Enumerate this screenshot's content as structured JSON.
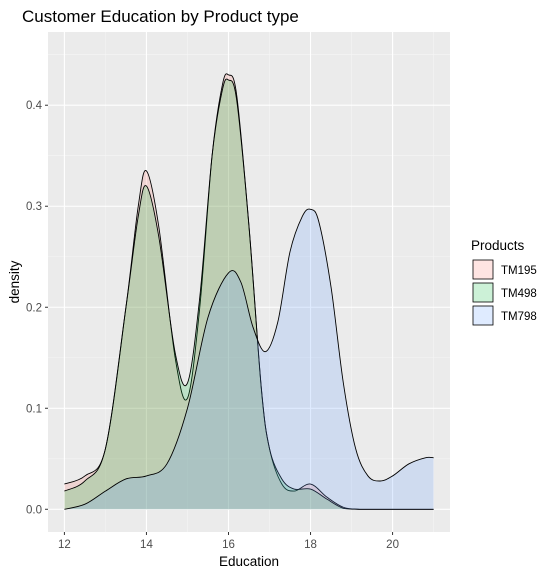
{
  "chart_data": {
    "type": "area",
    "subtype": "density",
    "title": "Customer Education by Product type",
    "xlabel": "Education",
    "ylabel": "density",
    "xlim": [
      11.6,
      21.4
    ],
    "ylim": [
      -0.0225,
      0.4725
    ],
    "x_ticks": [
      12,
      14,
      16,
      18,
      20
    ],
    "y_ticks": [
      0.0,
      0.1,
      0.2,
      0.3,
      0.4
    ],
    "y_tick_labels": [
      "0.0",
      "0.1",
      "0.2",
      "0.3",
      "0.4"
    ],
    "grid": true,
    "legend": {
      "title": "Products",
      "position": "right"
    },
    "series": [
      {
        "name": "TM195",
        "fill": "#F8766D",
        "x": [
          12,
          12.5,
          13,
          13.5,
          13.8,
          14,
          14.3,
          14.7,
          15,
          15.3,
          15.6,
          15.85,
          16,
          16.2,
          16.5,
          16.8,
          17,
          17.3,
          17.6,
          18,
          18.4,
          18.8,
          19.2,
          19.6,
          20,
          21
        ],
        "y": [
          0.025,
          0.033,
          0.06,
          0.2,
          0.3,
          0.335,
          0.28,
          0.15,
          0.11,
          0.2,
          0.35,
          0.42,
          0.43,
          0.41,
          0.28,
          0.12,
          0.06,
          0.025,
          0.018,
          0.025,
          0.012,
          0.002,
          0.0,
          0.0,
          0.0,
          0.0
        ]
      },
      {
        "name": "TM498",
        "fill": "#00BA38",
        "x": [
          12,
          12.5,
          13,
          13.5,
          13.8,
          14,
          14.3,
          14.7,
          15,
          15.3,
          15.6,
          15.85,
          16,
          16.2,
          16.5,
          16.8,
          17,
          17.3,
          17.6,
          18,
          18.4,
          18.8,
          19.2,
          19.6,
          20,
          21
        ],
        "y": [
          0.018,
          0.028,
          0.06,
          0.2,
          0.29,
          0.32,
          0.27,
          0.155,
          0.125,
          0.21,
          0.35,
          0.415,
          0.425,
          0.405,
          0.28,
          0.12,
          0.06,
          0.03,
          0.02,
          0.02,
          0.01,
          0.001,
          0.0,
          0.0,
          0.0,
          0.0
        ]
      },
      {
        "name": "TM798",
        "fill": "#619CFF",
        "x": [
          12,
          12.5,
          13,
          13.5,
          14,
          14.5,
          15,
          15.5,
          16,
          16.3,
          16.6,
          16.9,
          17.2,
          17.5,
          17.8,
          18,
          18.2,
          18.5,
          18.8,
          19.1,
          19.4,
          19.7,
          20,
          20.4,
          20.8,
          21
        ],
        "y": [
          0.0,
          0.005,
          0.018,
          0.03,
          0.033,
          0.045,
          0.1,
          0.19,
          0.234,
          0.225,
          0.18,
          0.156,
          0.185,
          0.255,
          0.29,
          0.297,
          0.285,
          0.22,
          0.125,
          0.06,
          0.033,
          0.028,
          0.033,
          0.045,
          0.051,
          0.051
        ]
      }
    ]
  }
}
